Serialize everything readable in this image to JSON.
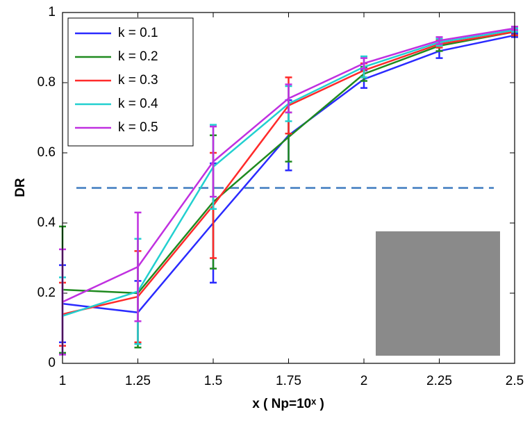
{
  "chart_data": {
    "type": "line",
    "xlabel": "x ( Np=10ˣ )",
    "ylabel": "DR",
    "x": [
      1,
      1.25,
      1.5,
      1.75,
      2,
      2.25,
      2.5
    ],
    "series": [
      {
        "name": "k = 0.1",
        "color": "#2a2aff",
        "values": [
          0.17,
          0.145,
          0.4,
          0.65,
          0.81,
          0.89,
          0.935
        ],
        "errors": [
          0.11,
          0.09,
          0.17,
          0.1,
          0.025,
          0.02,
          0.005
        ]
      },
      {
        "name": "k = 0.2",
        "color": "#1f8a1f",
        "values": [
          0.21,
          0.2,
          0.46,
          0.645,
          0.825,
          0.905,
          0.945
        ],
        "errors": [
          0.18,
          0.155,
          0.19,
          0.07,
          0.02,
          0.015,
          0.01
        ]
      },
      {
        "name": "k = 0.3",
        "color": "#ff2a2a",
        "values": [
          0.14,
          0.19,
          0.45,
          0.735,
          0.835,
          0.91,
          0.945
        ],
        "errors": [
          0.09,
          0.13,
          0.15,
          0.08,
          0.02,
          0.01,
          0.01
        ]
      },
      {
        "name": "k = 0.4",
        "color": "#22d0d0",
        "values": [
          0.135,
          0.205,
          0.56,
          0.74,
          0.845,
          0.915,
          0.95
        ],
        "errors": [
          0.11,
          0.15,
          0.12,
          0.05,
          0.03,
          0.01,
          0.005
        ]
      },
      {
        "name": "k = 0.5",
        "color": "#c030e0",
        "values": [
          0.175,
          0.275,
          0.575,
          0.755,
          0.855,
          0.92,
          0.955
        ],
        "errors": [
          0.15,
          0.155,
          0.1,
          0.04,
          0.015,
          0.01,
          0.005
        ]
      }
    ],
    "hline": 0.5,
    "hline_color": "#5b8fc9",
    "xlim": [
      1,
      2.5
    ],
    "xticks": [
      1,
      1.25,
      1.5,
      1.75,
      2,
      2.25,
      2.5
    ],
    "ylim": [
      0,
      1
    ],
    "yticks": [
      0,
      0.2,
      0.4,
      0.6,
      0.8,
      1
    ],
    "legend": "upper-left"
  }
}
